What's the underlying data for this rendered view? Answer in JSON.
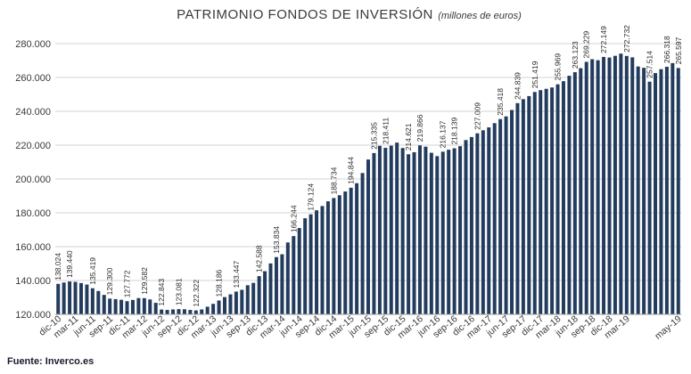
{
  "chart_data": {
    "type": "bar",
    "title": "PATRIMONIO FONDOS DE INVERSIÓN",
    "subtitle": "(millones de euros)",
    "ylim": [
      120000,
      280000
    ],
    "yticks": [
      "120.000",
      "140.000",
      "160.000",
      "180.000",
      "200.000",
      "220.000",
      "240.000",
      "260.000",
      "280.000"
    ],
    "grid": true,
    "bar_color": "#233c5e",
    "x_tick_labels": [
      "dic-10",
      "mar-11",
      "jun-11",
      "sep-11",
      "dic-11",
      "mar-12",
      "jun-12",
      "sep-12",
      "dic-12",
      "mar-13",
      "jun-13",
      "sep-13",
      "dic-13",
      "mar-14",
      "jun-14",
      "sep-14",
      "dic-14",
      "mar-15",
      "jun-15",
      "sep-15",
      "dic-15",
      "mar-16",
      "jun-16",
      "sep-16",
      "dic-16",
      "mar-17",
      "jun-17",
      "sep-17",
      "dic-17",
      "mar-18",
      "jun-18",
      "sep-18",
      "dic-18",
      "mar-19",
      "may-19"
    ],
    "values": [
      138024,
      138800,
      139440,
      139200,
      138500,
      137600,
      135419,
      133800,
      131500,
      129300,
      129000,
      128600,
      127772,
      128500,
      129600,
      129582,
      128800,
      126800,
      122843,
      122600,
      122900,
      123081,
      123000,
      122600,
      122322,
      122900,
      124500,
      126200,
      128186,
      130200,
      131800,
      133447,
      134500,
      137200,
      138600,
      142588,
      145500,
      150100,
      153834,
      155500,
      162500,
      166244,
      171000,
      176800,
      179124,
      181500,
      184000,
      186800,
      188734,
      190400,
      192600,
      194844,
      197500,
      203500,
      211500,
      215335,
      219600,
      218411,
      219700,
      221500,
      218300,
      214621,
      215800,
      219866,
      219100,
      215500,
      213500,
      216137,
      217300,
      218139,
      219400,
      223000,
      224800,
      227009,
      228800,
      230500,
      233000,
      235418,
      237000,
      240800,
      244839,
      247200,
      249000,
      251419,
      252500,
      253300,
      254100,
      255969,
      257800,
      261000,
      263123,
      265500,
      269229,
      270800,
      270200,
      272149,
      271800,
      272800,
      274100,
      272732,
      271900,
      266500,
      265700,
      257514,
      262600,
      264900,
      266318,
      268500,
      265597
    ],
    "data_labels": [
      {
        "index": 0,
        "text": "138.024"
      },
      {
        "index": 2,
        "text": "139.440"
      },
      {
        "index": 6,
        "text": "135.419"
      },
      {
        "index": 9,
        "text": "129.300"
      },
      {
        "index": 12,
        "text": "127.772"
      },
      {
        "index": 15,
        "text": "129.582"
      },
      {
        "index": 18,
        "text": "122.843"
      },
      {
        "index": 21,
        "text": "123.081"
      },
      {
        "index": 24,
        "text": "122.322"
      },
      {
        "index": 28,
        "text": "128.186"
      },
      {
        "index": 31,
        "text": "133.447"
      },
      {
        "index": 35,
        "text": "142.588"
      },
      {
        "index": 38,
        "text": "153.834"
      },
      {
        "index": 41,
        "text": "166.244"
      },
      {
        "index": 44,
        "text": "179.124"
      },
      {
        "index": 48,
        "text": "188.734"
      },
      {
        "index": 51,
        "text": "194.844"
      },
      {
        "index": 55,
        "text": "215.335"
      },
      {
        "index": 57,
        "text": "218.411"
      },
      {
        "index": 61,
        "text": "214.621"
      },
      {
        "index": 63,
        "text": "219.866"
      },
      {
        "index": 67,
        "text": "216.137"
      },
      {
        "index": 69,
        "text": "218.139"
      },
      {
        "index": 73,
        "text": "227.009"
      },
      {
        "index": 77,
        "text": "235.418"
      },
      {
        "index": 80,
        "text": "244.839"
      },
      {
        "index": 83,
        "text": "251.419"
      },
      {
        "index": 87,
        "text": "255.969"
      },
      {
        "index": 90,
        "text": "263.123"
      },
      {
        "index": 92,
        "text": "269.229"
      },
      {
        "index": 95,
        "text": "272.149"
      },
      {
        "index": 99,
        "text": "272.732"
      },
      {
        "index": 103,
        "text": "257.514"
      },
      {
        "index": 106,
        "text": "266.318"
      },
      {
        "index": 108,
        "text": "265.597"
      }
    ]
  },
  "source": "Fuente: Inverco.es"
}
